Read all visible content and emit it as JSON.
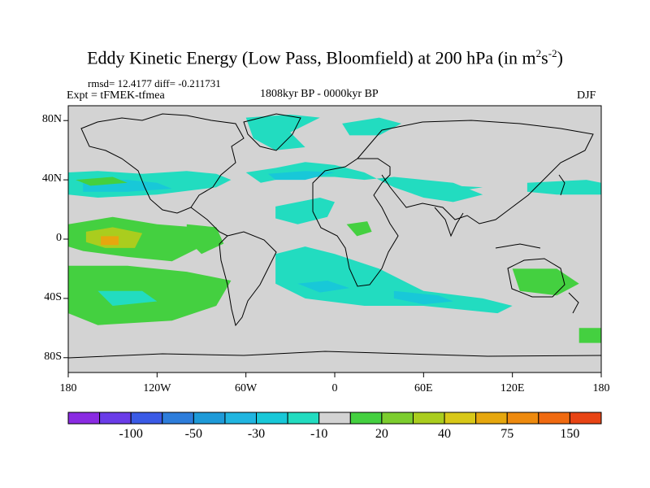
{
  "figure": {
    "title_prefix": "Eddy Kinetic Energy (Low Pass, Bloomfield) at 200 hPa (in m",
    "title_sup1": "2",
    "title_mid": "s",
    "title_sup2": "-2",
    "title_suffix": ")",
    "stats": "rmsd= 12.4177 diff= -0.211731",
    "expt": "Expt = tFMEK-tfmea",
    "period": "1808kyr BP - 0000kyr BP",
    "season": "DJF"
  },
  "chart_data": {
    "type": "heatmap",
    "xlim": [
      -180,
      180
    ],
    "ylim": [
      -90,
      90
    ],
    "x_ticks": [
      {
        "value": -180,
        "label": "180"
      },
      {
        "value": -120,
        "label": "120W"
      },
      {
        "value": -60,
        "label": "60W"
      },
      {
        "value": 0,
        "label": "0"
      },
      {
        "value": 60,
        "label": "60E"
      },
      {
        "value": 120,
        "label": "120E"
      },
      {
        "value": 180,
        "label": "180"
      }
    ],
    "y_ticks": [
      {
        "value": 80,
        "label": "80N"
      },
      {
        "value": 40,
        "label": "40N"
      },
      {
        "value": 0,
        "label": "0"
      },
      {
        "value": -40,
        "label": "40S"
      },
      {
        "value": -80,
        "label": "80S"
      }
    ],
    "colorbar": {
      "colors": [
        "#8a2be2",
        "#6a3ce8",
        "#3a5ae6",
        "#2d7ddb",
        "#1e9ad8",
        "#20b5e0",
        "#18c8d8",
        "#22dcc0",
        "#d3d3d3",
        "#44d040",
        "#7ccd2e",
        "#aacd1e",
        "#d8c818",
        "#e6a70e",
        "#ee8a0e",
        "#f06a10",
        "#e84414"
      ],
      "labels": [
        {
          "value": "-100",
          "index": 2
        },
        {
          "value": "-50",
          "index": 4
        },
        {
          "value": "-30",
          "index": 6
        },
        {
          "value": "-10",
          "index": 8
        },
        {
          "value": "20",
          "index": 10
        },
        {
          "value": "40",
          "index": 12
        },
        {
          "value": "75",
          "index": 14
        },
        {
          "value": "150",
          "index": 16
        }
      ]
    },
    "regions": [
      {
        "name": "N Pacific band",
        "color": "#22dcc0",
        "pts": [
          [
            -180,
            45
          ],
          [
            -160,
            46
          ],
          [
            -130,
            44
          ],
          [
            -100,
            46
          ],
          [
            -80,
            44
          ],
          [
            -70,
            40
          ],
          [
            -80,
            35
          ],
          [
            -120,
            30
          ],
          [
            -160,
            28
          ],
          [
            -180,
            30
          ]
        ]
      },
      {
        "name": "N Pacific core",
        "color": "#18c8d8",
        "pts": [
          [
            -170,
            40
          ],
          [
            -140,
            40
          ],
          [
            -120,
            38
          ],
          [
            -110,
            34
          ],
          [
            -140,
            32
          ],
          [
            -170,
            32
          ]
        ]
      },
      {
        "name": "N Atlantic band",
        "color": "#22dcc0",
        "pts": [
          [
            -60,
            45
          ],
          [
            -40,
            48
          ],
          [
            -20,
            52
          ],
          [
            0,
            50
          ],
          [
            20,
            45
          ],
          [
            40,
            35
          ],
          [
            60,
            28
          ],
          [
            80,
            25
          ],
          [
            100,
            30
          ],
          [
            80,
            38
          ],
          [
            60,
            40
          ],
          [
            40,
            42
          ],
          [
            20,
            40
          ],
          [
            0,
            42
          ],
          [
            -30,
            42
          ],
          [
            -50,
            38
          ]
        ]
      },
      {
        "name": "N Atlantic core",
        "color": "#18c8d8",
        "pts": [
          [
            -45,
            44
          ],
          [
            -20,
            46
          ],
          [
            0,
            45
          ],
          [
            -20,
            40
          ],
          [
            -40,
            40
          ]
        ]
      },
      {
        "name": "Arctic band",
        "color": "#22dcc0",
        "pts": [
          [
            -60,
            82
          ],
          [
            -30,
            84
          ],
          [
            -10,
            82
          ],
          [
            -30,
            72
          ],
          [
            -20,
            62
          ],
          [
            -40,
            60
          ],
          [
            -55,
            68
          ]
        ]
      },
      {
        "name": "E Arctic",
        "color": "#22dcc0",
        "pts": [
          [
            5,
            78
          ],
          [
            30,
            82
          ],
          [
            45,
            78
          ],
          [
            30,
            70
          ],
          [
            10,
            70
          ]
        ]
      },
      {
        "name": "Tropical Atlantic",
        "color": "#22dcc0",
        "pts": [
          [
            -40,
            22
          ],
          [
            -10,
            28
          ],
          [
            0,
            25
          ],
          [
            -5,
            15
          ],
          [
            -25,
            10
          ],
          [
            -40,
            14
          ]
        ]
      },
      {
        "name": "S Atlantic band",
        "color": "#22dcc0",
        "pts": [
          [
            -40,
            -10
          ],
          [
            -20,
            -5
          ],
          [
            0,
            -10
          ],
          [
            30,
            -20
          ],
          [
            60,
            -35
          ],
          [
            100,
            -40
          ],
          [
            120,
            -45
          ],
          [
            110,
            -50
          ],
          [
            60,
            -45
          ],
          [
            20,
            -45
          ],
          [
            -20,
            -40
          ],
          [
            -40,
            -30
          ]
        ]
      },
      {
        "name": "S Atlantic core",
        "color": "#18c8d8",
        "pts": [
          [
            -25,
            -30
          ],
          [
            -5,
            -28
          ],
          [
            10,
            -33
          ],
          [
            -10,
            -36
          ]
        ]
      },
      {
        "name": "Indian Ocean",
        "color": "#18c8d8",
        "pts": [
          [
            40,
            -35
          ],
          [
            70,
            -38
          ],
          [
            80,
            -42
          ],
          [
            60,
            -44
          ],
          [
            40,
            -40
          ]
        ]
      },
      {
        "name": "N Pacific west",
        "color": "#22dcc0",
        "pts": [
          [
            130,
            38
          ],
          [
            170,
            40
          ],
          [
            180,
            38
          ],
          [
            180,
            30
          ],
          [
            150,
            30
          ],
          [
            130,
            32
          ]
        ]
      },
      {
        "name": "Asia jet",
        "color": "#22dcc0",
        "pts": [
          [
            50,
            38
          ],
          [
            80,
            36
          ],
          [
            100,
            35
          ],
          [
            80,
            32
          ],
          [
            55,
            34
          ]
        ]
      },
      {
        "name": "SE Pacific green",
        "color": "#44d040",
        "pts": [
          [
            -180,
            10
          ],
          [
            -150,
            15
          ],
          [
            -120,
            10
          ],
          [
            -95,
            8
          ],
          [
            -90,
            -5
          ],
          [
            -110,
            -15
          ],
          [
            -140,
            -12
          ],
          [
            -170,
            -8
          ],
          [
            -180,
            -5
          ]
        ]
      },
      {
        "name": "SE Pacific yellow",
        "color": "#aacd1e",
        "pts": [
          [
            -168,
            5
          ],
          [
            -150,
            8
          ],
          [
            -130,
            4
          ],
          [
            -135,
            -6
          ],
          [
            -155,
            -6
          ],
          [
            -168,
            -2
          ]
        ]
      },
      {
        "name": "SE Pacific orange",
        "color": "#e6a70e",
        "pts": [
          [
            -158,
            2
          ],
          [
            -146,
            2
          ],
          [
            -146,
            -4
          ],
          [
            -158,
            -4
          ]
        ]
      },
      {
        "name": "E Pacific green",
        "color": "#44d040",
        "pts": [
          [
            -100,
            10
          ],
          [
            -80,
            8
          ],
          [
            -75,
            -3
          ],
          [
            -90,
            -10
          ],
          [
            -100,
            0
          ]
        ]
      },
      {
        "name": "S Pacific green",
        "color": "#44d040",
        "pts": [
          [
            -180,
            -18
          ],
          [
            -140,
            -18
          ],
          [
            -100,
            -22
          ],
          [
            -70,
            -28
          ],
          [
            -80,
            -45
          ],
          [
            -110,
            -55
          ],
          [
            -160,
            -58
          ],
          [
            -180,
            -50
          ]
        ]
      },
      {
        "name": "S Pacific teal",
        "color": "#22dcc0",
        "pts": [
          [
            -160,
            -35
          ],
          [
            -130,
            -35
          ],
          [
            -120,
            -42
          ],
          [
            -150,
            -45
          ]
        ]
      },
      {
        "name": "Africa green",
        "color": "#44d040",
        "pts": [
          [
            8,
            10
          ],
          [
            22,
            12
          ],
          [
            25,
            5
          ],
          [
            15,
            2
          ]
        ]
      },
      {
        "name": "Australia green",
        "color": "#44d040",
        "pts": [
          [
            120,
            -20
          ],
          [
            150,
            -20
          ],
          [
            165,
            -30
          ],
          [
            150,
            -38
          ],
          [
            125,
            -35
          ]
        ]
      },
      {
        "name": "NE Pacific green",
        "color": "#44d040",
        "pts": [
          [
            -175,
            40
          ],
          [
            -150,
            42
          ],
          [
            -140,
            38
          ],
          [
            -165,
            36
          ]
        ]
      },
      {
        "name": "S Ocean edge",
        "color": "#44d040",
        "pts": [
          [
            165,
            -60
          ],
          [
            180,
            -60
          ],
          [
            180,
            -70
          ],
          [
            165,
            -70
          ]
        ]
      }
    ]
  }
}
